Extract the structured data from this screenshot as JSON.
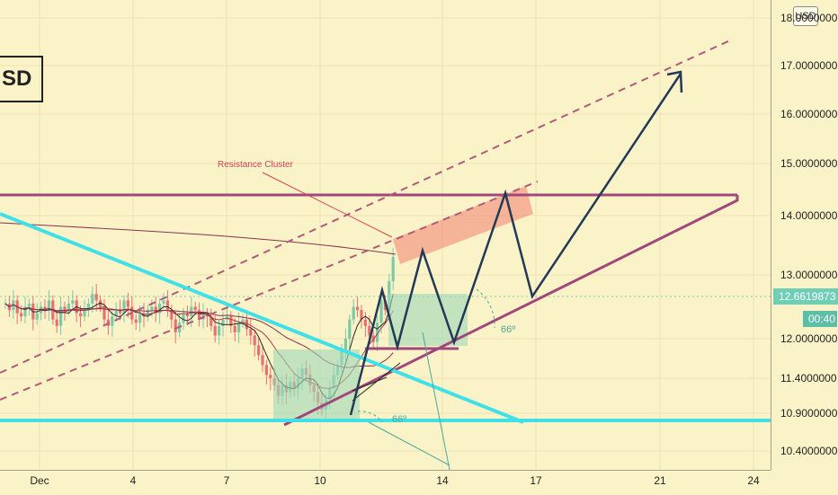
{
  "header": {
    "ticker_fragment": "SD",
    "currency_badge": "USD"
  },
  "price_scale": {
    "ticks": [
      "18.0000000",
      "17.0000000",
      "16.0000000",
      "15.0000000",
      "14.0000000",
      "13.0000000",
      "12.0000000",
      "11.4000000",
      "10.9000000",
      "10.4000000"
    ],
    "current_price": "12.6619873",
    "countdown": "00:40"
  },
  "time_scale": {
    "ticks": [
      "Dec",
      "4",
      "7",
      "10",
      "14",
      "17",
      "21",
      "24"
    ]
  },
  "annotations": {
    "resistance_label": "Resistance Cluster",
    "angle_label_1": "66º",
    "angle_label_2": "66º"
  },
  "colors": {
    "background": "#fbf3c8",
    "up_candle": "#7cc9a8",
    "down_candle": "#e87070",
    "cyan_line": "#3fe0e8",
    "magenta_line": "#a2477c",
    "path_line": "#233a57",
    "current_price_tag": "#6fcfb6",
    "countdown_tag": "#5dbea8"
  },
  "chart_data": {
    "type": "candlestick",
    "ylabel": "",
    "price_ticks": [
      18.0,
      17.0,
      16.0,
      15.0,
      14.0,
      13.0,
      12.0,
      11.4,
      10.9,
      10.4
    ],
    "x_ticks": [
      "Dec",
      "4",
      "7",
      "10",
      "14",
      "17",
      "21",
      "24"
    ],
    "current_price": 12.6619873,
    "series": [
      {
        "name": "candles",
        "values": [
          12.55,
          12.45,
          12.6,
          12.4,
          12.35,
          12.5,
          12.55,
          12.3,
          12.4,
          12.5,
          12.45,
          12.6,
          12.3,
          12.2,
          12.5,
          12.45,
          12.55,
          12.6,
          12.4,
          12.35,
          12.45,
          12.55,
          12.7,
          12.6,
          12.5,
          12.3,
          12.2,
          12.35,
          12.45,
          12.4,
          12.6,
          12.5,
          12.3,
          12.25,
          12.4,
          12.35,
          12.45,
          12.5,
          12.4,
          12.55,
          12.6,
          12.45,
          12.3,
          12.1,
          12.25,
          12.4,
          12.35,
          12.5,
          12.45,
          12.3,
          12.4,
          12.35,
          12.2,
          12.05,
          12.2,
          12.3,
          12.35,
          12.2,
          12.1,
          12.25,
          12.3,
          12.15,
          12.05,
          11.9,
          11.75,
          11.6,
          11.45,
          11.4,
          11.3,
          11.15,
          11.3,
          11.2,
          11.35,
          11.25,
          11.4,
          11.55,
          11.45,
          11.3,
          11.2,
          11.05,
          10.95,
          11.1,
          11.25,
          11.45,
          11.6,
          11.8,
          12.0,
          12.3,
          12.5,
          12.45,
          12.3,
          12.2,
          12.05,
          11.95,
          12.25,
          12.6,
          12.45,
          12.9,
          13.3
        ]
      }
    ]
  }
}
